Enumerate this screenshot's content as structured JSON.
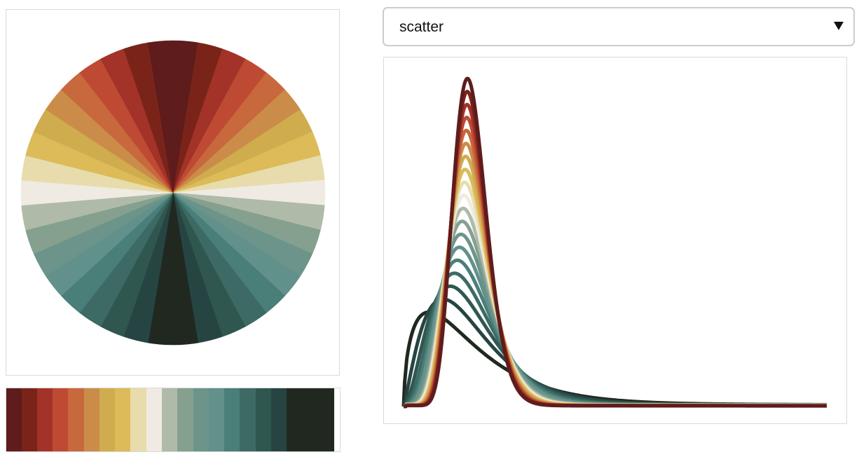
{
  "palette": [
    "#5e1c1c",
    "#7a2419",
    "#a33229",
    "#bf4a33",
    "#c8683d",
    "#cb8c4a",
    "#cfad4f",
    "#dcbb58",
    "#e8dcac",
    "#efebe3",
    "#afbba8",
    "#85a08f",
    "#6c948a",
    "#61918a",
    "#4a7f79",
    "#3d6a65",
    "#30574f",
    "#264542",
    "#202820"
  ],
  "dropdown": {
    "selected": "scatter"
  },
  "plot": {
    "type": "line",
    "x_range": [
      0,
      10
    ],
    "y_range": [
      0,
      1.02
    ]
  }
}
